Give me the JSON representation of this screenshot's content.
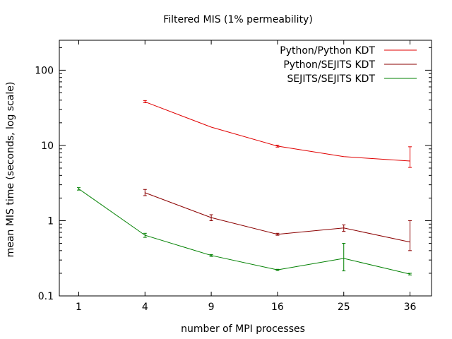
{
  "chart_data": {
    "type": "line",
    "title": "Filtered MIS (1% permeability)",
    "xlabel": "number of MPI processes",
    "ylabel": "mean MIS time (seconds, log scale)",
    "x_scale": "sqrt",
    "y_scale": "log",
    "xlim": [
      0.5,
      40
    ],
    "ylim": [
      0.1,
      250
    ],
    "xticks": [
      1,
      4,
      9,
      16,
      25,
      36
    ],
    "yticks": [
      0.1,
      1,
      10,
      100
    ],
    "ytick_labels": [
      "0.1",
      "1",
      "10",
      "100"
    ],
    "legend_position": "top-right",
    "grid": false,
    "series": [
      {
        "name": "Python/Python KDT",
        "color": "#e00000",
        "points": [
          {
            "x": 4,
            "y": 38,
            "lo": 37,
            "hi": 39.5
          },
          {
            "x": 9,
            "y": 17.5
          },
          {
            "x": 16,
            "y": 9.8,
            "lo": 9.5,
            "hi": 10.1
          },
          {
            "x": 25,
            "y": 7.1
          },
          {
            "x": 36,
            "y": 6.2,
            "lo": 5.1,
            "hi": 9.6
          }
        ]
      },
      {
        "name": "Python/SEJITS KDT",
        "color": "#8b0000",
        "points": [
          {
            "x": 4,
            "y": 2.35,
            "lo": 2.15,
            "hi": 2.6
          },
          {
            "x": 9,
            "y": 1.1,
            "lo": 1.0,
            "hi": 1.2
          },
          {
            "x": 16,
            "y": 0.66,
            "lo": 0.64,
            "hi": 0.68
          },
          {
            "x": 25,
            "y": 0.8,
            "lo": 0.72,
            "hi": 0.88
          },
          {
            "x": 36,
            "y": 0.52,
            "lo": 0.4,
            "hi": 1.0
          }
        ]
      },
      {
        "name": "SEJITS/SEJITS KDT",
        "color": "#008000",
        "points": [
          {
            "x": 1,
            "y": 2.65,
            "lo": 2.55,
            "hi": 2.75
          },
          {
            "x": 4,
            "y": 0.64,
            "lo": 0.6,
            "hi": 0.68
          },
          {
            "x": 9,
            "y": 0.345,
            "lo": 0.335,
            "hi": 0.355
          },
          {
            "x": 16,
            "y": 0.222,
            "lo": 0.218,
            "hi": 0.226
          },
          {
            "x": 25,
            "y": 0.315,
            "lo": 0.215,
            "hi": 0.5
          },
          {
            "x": 36,
            "y": 0.195,
            "lo": 0.19,
            "hi": 0.2
          }
        ]
      }
    ]
  }
}
